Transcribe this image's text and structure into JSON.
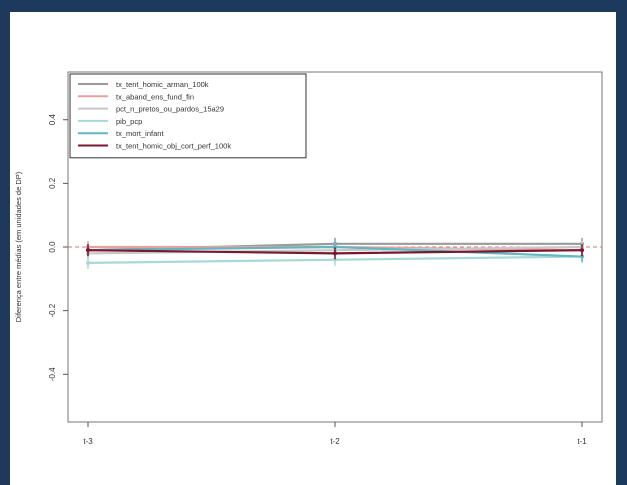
{
  "colors": {
    "page_background": "#1d3a5c",
    "plot_background": "#ffffff"
  },
  "chart_data": {
    "type": "line",
    "title": "",
    "xlabel": "",
    "ylabel": "Diferença entre médias (em unidades de DP)",
    "categories": [
      "t-3",
      "t-2",
      "t-1"
    ],
    "ylim": [
      -0.55,
      0.55
    ],
    "yticks": [
      -0.4,
      -0.2,
      0.0,
      0.2,
      0.4
    ],
    "ytick_labels": [
      "-0.4",
      "-0.2",
      "0.0",
      "0.2",
      "0.4"
    ],
    "reference_line": {
      "y": 0.0,
      "color": "#e07070",
      "style": "dashed"
    },
    "grid": false,
    "legend_position": "top-left",
    "series": [
      {
        "name": "tx_tent_homic_arman_100k",
        "color": "#9a9a9a",
        "values": [
          -0.01,
          0.01,
          0.01
        ]
      },
      {
        "name": "tx_aband_ens_fund_fin",
        "color": "#e8a0a0",
        "values": [
          0.0,
          0.0,
          -0.01
        ]
      },
      {
        "name": "pct_n_pretos_ou_pardos_15a29",
        "color": "#c8c8c8",
        "values": [
          -0.02,
          -0.01,
          0.0
        ]
      },
      {
        "name": "pib_pcp",
        "color": "#a8d8d8",
        "values": [
          -0.05,
          -0.04,
          -0.03
        ]
      },
      {
        "name": "tx_mort_infant",
        "color": "#60b8c0",
        "values": [
          -0.01,
          0.0,
          -0.03
        ]
      },
      {
        "name": "tx_tent_homic_obj_cort_perf_100k",
        "color": "#7a1830",
        "values": [
          -0.01,
          -0.02,
          -0.01
        ]
      }
    ]
  }
}
